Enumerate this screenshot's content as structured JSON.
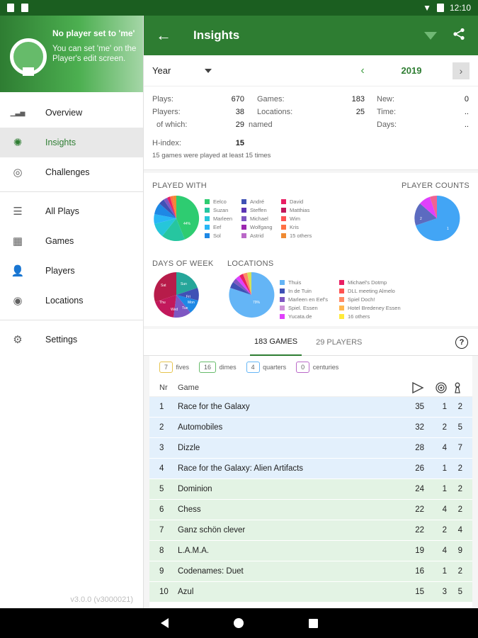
{
  "status": {
    "time": "12:10"
  },
  "drawer": {
    "header_title": "No player set to 'me'",
    "header_sub": "You can set 'me' on the Player's edit screen.",
    "items_top": [
      {
        "label": "Overview",
        "icon": "bar-chart-icon"
      },
      {
        "label": "Insights",
        "icon": "lightbulb-icon",
        "active": true
      },
      {
        "label": "Challenges",
        "icon": "target-icon"
      }
    ],
    "items_mid": [
      {
        "label": "All Plays",
        "icon": "list-icon"
      },
      {
        "label": "Games",
        "icon": "checkerboard-icon"
      },
      {
        "label": "Players",
        "icon": "person-icon"
      },
      {
        "label": "Locations",
        "icon": "radar-icon"
      }
    ],
    "items_bottom": [
      {
        "label": "Settings",
        "icon": "gear-icon"
      }
    ],
    "version": "v3.0.0 (v3000021)"
  },
  "appbar": {
    "title": "Insights"
  },
  "period": {
    "type": "Year",
    "year": "2019"
  },
  "stats": {
    "plays_label": "Plays:",
    "plays": "670",
    "players_label": "Players:",
    "players": "38",
    "of_which_label": "of which:",
    "of_which": "29",
    "named_label": "named",
    "games_label": "Games:",
    "games": "183",
    "locations_label": "Locations:",
    "locations": "25",
    "new_label": "New:",
    "new": "0",
    "time_label": "Time:",
    "time": "..",
    "days_label": "Days:",
    "days": "..",
    "hindex_label": "H-index:",
    "hindex": "15",
    "hindex_note": "15 games were played at least 15 times"
  },
  "charts": {
    "played_with": {
      "title": "PLAYED WITH",
      "center_label": "44%",
      "legend": [
        {
          "label": "Eelco",
          "color": "#2ecc71"
        },
        {
          "label": "André",
          "color": "#3f51b5"
        },
        {
          "label": "David",
          "color": "#e91e63"
        },
        {
          "label": "Suzan",
          "color": "#26c6a0"
        },
        {
          "label": "Steffen",
          "color": "#5c35b5"
        },
        {
          "label": "Matthias",
          "color": "#c2185b"
        },
        {
          "label": "Marleen",
          "color": "#26c6da"
        },
        {
          "label": "Michael",
          "color": "#7e57c2"
        },
        {
          "label": "Wim",
          "color": "#ff5252"
        },
        {
          "label": "Eef",
          "color": "#29b6f6"
        },
        {
          "label": "Wolfgang",
          "color": "#9c27b0"
        },
        {
          "label": "Kris",
          "color": "#ff7043"
        },
        {
          "label": "Sol",
          "color": "#1e88e5"
        },
        {
          "label": "Astrid",
          "color": "#ba68c8"
        },
        {
          "label": "15 others",
          "color": "#ef8a32"
        }
      ]
    },
    "player_counts": {
      "title": "PLAYER COUNTS",
      "label_a": "2",
      "label_b": "1"
    },
    "days_of_week": {
      "title": "DAYS OF WEEK",
      "slice_labels": [
        "Sat",
        "Sun",
        "Thu",
        "Wed",
        "Fri",
        "Mon",
        "Tue"
      ]
    },
    "locations": {
      "title": "LOCATIONS",
      "center_label": "79%",
      "legend": [
        {
          "label": "Thuis",
          "color": "#64b5f6"
        },
        {
          "label": "Michael's Dotmp",
          "color": "#e91e63"
        },
        {
          "label": "In de Tuin",
          "color": "#3f51b5"
        },
        {
          "label": "DLL meeting Almelo",
          "color": "#ff5252"
        },
        {
          "label": "Marleen en Eef's",
          "color": "#7e57c2"
        },
        {
          "label": "Spiel Doch!",
          "color": "#ff8a65"
        },
        {
          "label": "Spiel. Essen",
          "color": "#ce93d8"
        },
        {
          "label": "Hotel Bredeney Essen",
          "color": "#ffb74d"
        },
        {
          "label": "Yucata.de",
          "color": "#e040fb"
        },
        {
          "label": "16 others",
          "color": "#ffeb3b"
        }
      ]
    }
  },
  "tabs": {
    "games": "183 GAMES",
    "players": "29 PLAYERS"
  },
  "badges": [
    {
      "count": "7",
      "label": "fives",
      "color": "#e6c44d"
    },
    {
      "count": "16",
      "label": "dimes",
      "color": "#66bb6a"
    },
    {
      "count": "4",
      "label": "quarters",
      "color": "#64b5f6"
    },
    {
      "count": "0",
      "label": "centuries",
      "color": "#ba68c8"
    }
  ],
  "table": {
    "col_nr": "Nr",
    "col_game": "Game",
    "rows": [
      {
        "nr": "1",
        "game": "Race for the Galaxy",
        "plays": "35",
        "a": "1",
        "b": "2",
        "tier": "blue"
      },
      {
        "nr": "2",
        "game": "Automobiles",
        "plays": "32",
        "a": "2",
        "b": "5",
        "tier": "blue"
      },
      {
        "nr": "3",
        "game": "Dizzle",
        "plays": "28",
        "a": "4",
        "b": "7",
        "tier": "blue"
      },
      {
        "nr": "4",
        "game": "Race for the Galaxy: Alien Artifacts",
        "plays": "26",
        "a": "1",
        "b": "2",
        "tier": "blue"
      },
      {
        "nr": "5",
        "game": "Dominion",
        "plays": "24",
        "a": "1",
        "b": "2",
        "tier": "green"
      },
      {
        "nr": "6",
        "game": "Chess",
        "plays": "22",
        "a": "4",
        "b": "2",
        "tier": "green"
      },
      {
        "nr": "7",
        "game": "Ganz schön clever",
        "plays": "22",
        "a": "2",
        "b": "4",
        "tier": "green"
      },
      {
        "nr": "8",
        "game": "L.A.M.A.",
        "plays": "19",
        "a": "4",
        "b": "9",
        "tier": "green"
      },
      {
        "nr": "9",
        "game": "Codenames: Duet",
        "plays": "16",
        "a": "1",
        "b": "2",
        "tier": "green"
      },
      {
        "nr": "10",
        "game": "Azul",
        "plays": "15",
        "a": "3",
        "b": "5",
        "tier": "green"
      }
    ]
  }
}
